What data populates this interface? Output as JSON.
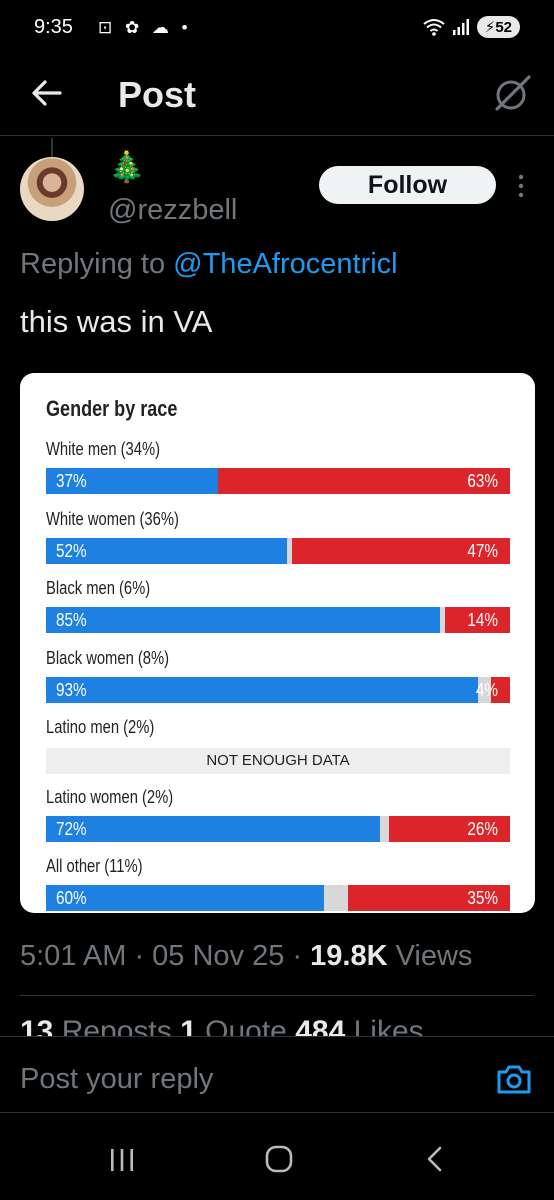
{
  "status": {
    "time": "9:35",
    "icons": "⊡ ✿ ☁ •",
    "battery": "52",
    "wifi": "⁵"
  },
  "header": {
    "title": "Post"
  },
  "post": {
    "handle": "@rezzbell",
    "emoji": "🎄",
    "follow_label": "Follow",
    "replying_prefix": "Replying to ",
    "replying_to": "@TheAfrocentricl",
    "text": "this was in VA",
    "timestamp": "5:01 AM · 05 Nov 25 · ",
    "views_count": "19.8K",
    "views_label": " Views",
    "reposts_count": "13",
    "reposts_label": " Reposts  ",
    "quotes_count": "1",
    "quotes_label": " Quote  ",
    "likes_count": "484",
    "likes_label": " Likes"
  },
  "chart_data": {
    "type": "bar",
    "title": "Gender by race",
    "categories": [
      "White men (34%)",
      "White women (36%)",
      "Black men (6%)",
      "Black women (8%)",
      "Latino men (2%)",
      "Latino women (2%)",
      "All other (11%)"
    ],
    "series": [
      {
        "name": "",
        "color": "#1e80e0",
        "values": [
          37,
          52,
          85,
          93,
          null,
          72,
          60
        ]
      },
      {
        "name": "",
        "color": "#dc252b",
        "values": [
          63,
          47,
          14,
          4,
          null,
          26,
          35
        ]
      }
    ],
    "no_data_label": "NOT ENOUGH DATA"
  },
  "reply": {
    "placeholder": "Post your reply"
  }
}
